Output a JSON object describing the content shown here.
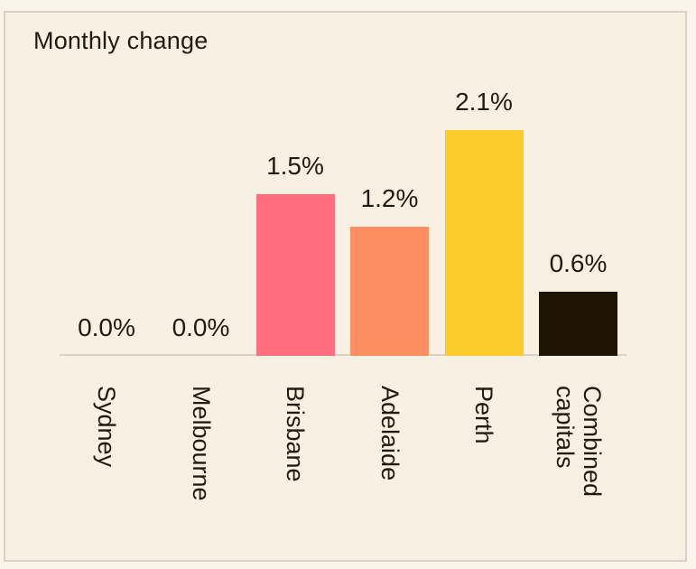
{
  "chart_data": {
    "type": "bar",
    "title": "Monthly change",
    "categories": [
      "Sydney",
      "Melbourne",
      "Brisbane",
      "Adelaide",
      "Perth",
      "Combined capitals"
    ],
    "category_label_lines": [
      [
        "Sydney"
      ],
      [
        "Melbourne"
      ],
      [
        "Brisbane"
      ],
      [
        "Adelaide"
      ],
      [
        "Perth"
      ],
      [
        "Combined",
        "capitals"
      ]
    ],
    "values": [
      0.0,
      0.0,
      1.5,
      1.2,
      2.1,
      0.6
    ],
    "value_labels": [
      "0.0%",
      "0.0%",
      "1.5%",
      "1.2%",
      "2.1%",
      "0.6%"
    ],
    "unit": "%",
    "ylim": [
      0,
      2.3
    ],
    "bar_colors": [
      "none",
      "none",
      "#ff6e7e",
      "#fc8e61",
      "#fdcb2e",
      "#1e1505"
    ],
    "xlabel": "",
    "ylabel": "",
    "x_label_rotation_deg": 90,
    "grid": false,
    "legend": false,
    "y_axis_shown": false,
    "baseline_shown": true
  },
  "colors": {
    "background_outer": "#faf4ea",
    "background_card": "#f8f0e3",
    "border": "#d8d1c5",
    "axis_line": "#d9d2c5",
    "text": "#221a0b"
  }
}
